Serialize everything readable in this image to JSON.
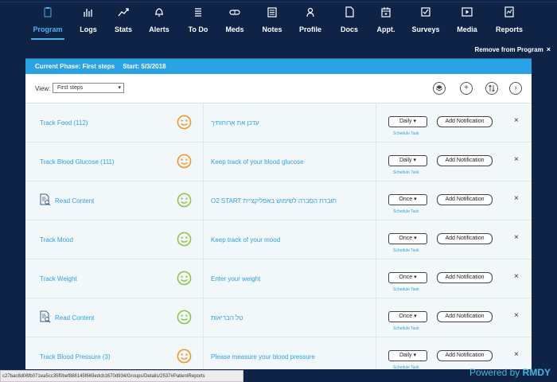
{
  "nav": {
    "items": [
      {
        "label": "Program",
        "icon": "clipboard-icon",
        "active": true
      },
      {
        "label": "Logs",
        "icon": "bar-chart-icon"
      },
      {
        "label": "Stats",
        "icon": "trend-icon"
      },
      {
        "label": "Alerts",
        "icon": "bell-icon"
      },
      {
        "label": "To Do",
        "icon": "list-icon"
      },
      {
        "label": "Meds",
        "icon": "pill-icon"
      },
      {
        "label": "Notes",
        "icon": "notes-icon"
      },
      {
        "label": "Profile",
        "icon": "person-icon"
      },
      {
        "label": "Docs",
        "icon": "document-icon"
      },
      {
        "label": "Appt.",
        "icon": "calendar-icon"
      },
      {
        "label": "Surveys",
        "icon": "checkbox-icon"
      },
      {
        "label": "Media",
        "icon": "play-icon"
      },
      {
        "label": "Reports",
        "icon": "report-icon"
      }
    ],
    "remove_label": "Remove from Program",
    "remove_x": "×"
  },
  "phase": {
    "label": "Current Phase: First steps",
    "start": "Start: 5/3/2018"
  },
  "view": {
    "label": "View:",
    "selected": "First steps"
  },
  "tasks": [
    {
      "name": "Track Food (112)",
      "icon": "",
      "face": "orange",
      "desc": "עדכן את ארוחותיך",
      "freq": "Daily ▾",
      "schedule": "Schedule Task",
      "notif": "Add Notification"
    },
    {
      "name": "Track Blood Glucose (111)",
      "icon": "",
      "face": "orange",
      "desc": "Keep track of your blood glucose",
      "freq": "Daily ▾",
      "schedule": "Schedule Task",
      "notif": "Add Notification"
    },
    {
      "name": "Read Content",
      "icon": "document-search-icon",
      "face": "green",
      "desc": "O2 START חוברת הסברה לשימוש באפליקציית",
      "freq": "Once ▾",
      "schedule": "Schedule Task",
      "notif": "Add Notification"
    },
    {
      "name": "Track Mood",
      "icon": "",
      "face": "green",
      "desc": "Keep track of your mood",
      "freq": "Once ▾",
      "schedule": "Schedule Task",
      "notif": "Add Notification"
    },
    {
      "name": "Track Weight",
      "icon": "",
      "face": "green",
      "desc": "Enter your weight",
      "freq": "Once ▾",
      "schedule": "Schedule Task",
      "notif": "Add Notification"
    },
    {
      "name": "Read Content",
      "icon": "document-search-icon",
      "face": "green",
      "desc": "טל הבריאות",
      "freq": "Once ▾",
      "schedule": "Schedule Task",
      "notif": "Add Notification"
    },
    {
      "name": "Track Blood Pressure (3)",
      "icon": "",
      "face": "orange",
      "desc": "Please measure your blood pressure",
      "freq": "Daily ▾",
      "schedule": "Schedule Task",
      "notif": "Add Notification"
    }
  ],
  "delete_symbol": "×",
  "status_url": "c27bac8d06fb071ea5cc35f0bef888145f669edcb1670d934/Groups/Details/2537#PatientReports",
  "powered": {
    "prefix": "Powered by",
    "brand": "RMDY"
  },
  "colors": {
    "accent": "#41b6e6",
    "navy": "#0f2347",
    "orange": "#f7941d",
    "green": "#8dc63f"
  }
}
